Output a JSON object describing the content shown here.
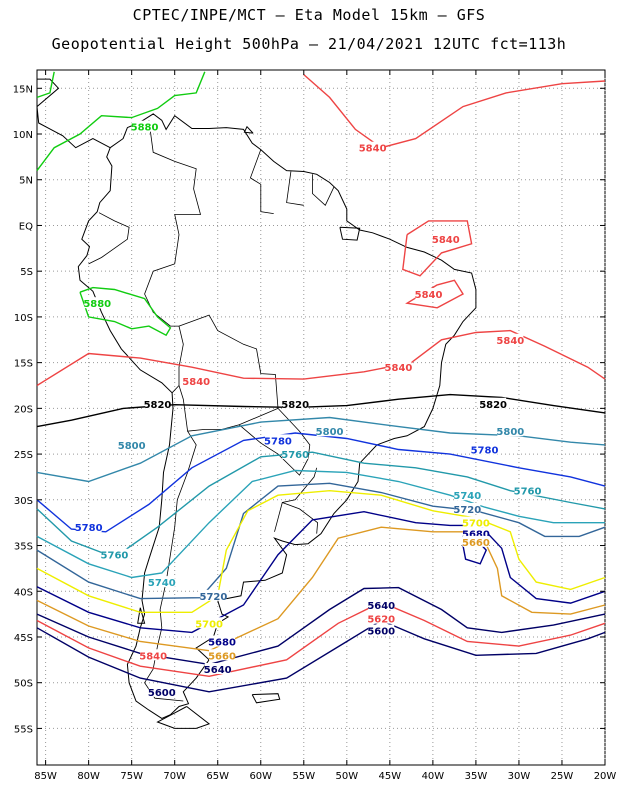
{
  "header": {
    "title_line1": "CPTEC/INPE/MCT –  Eta Model 15km – GFS",
    "title_line2": "Geopotential Height 500hPa – 21/04/2021 12UTC fct=113h"
  },
  "map": {
    "lon_range": [
      -86,
      -20
    ],
    "lat_range": [
      -59,
      17
    ],
    "lat_ticks": [
      "15N",
      "10N",
      "5N",
      "EQ",
      "5S",
      "10S",
      "15S",
      "20S",
      "25S",
      "30S",
      "35S",
      "40S",
      "45S",
      "50S",
      "55S"
    ],
    "lat_values": [
      15,
      10,
      5,
      0,
      -5,
      -10,
      -15,
      -20,
      -25,
      -30,
      -35,
      -40,
      -45,
      -50,
      -55
    ],
    "lon_ticks": [
      "85W",
      "80W",
      "75W",
      "70W",
      "65W",
      "60W",
      "55W",
      "50W",
      "45W",
      "40W",
      "35W",
      "30W",
      "25W",
      "20W"
    ],
    "lon_values": [
      -85,
      -80,
      -75,
      -70,
      -65,
      -60,
      -55,
      -50,
      -45,
      -40,
      -35,
      -30,
      -25,
      -20
    ]
  },
  "contours": [
    {
      "level": "5880",
      "color": "#11cc11",
      "labels": [
        [
          -73.5,
          10.8
        ],
        [
          -79,
          -8.5
        ]
      ]
    },
    {
      "level": "5840",
      "color": "#ee4444",
      "labels": [
        [
          -47,
          8.5
        ],
        [
          -38.5,
          -1.5
        ],
        [
          -40.5,
          -7.5
        ],
        [
          -31,
          -12.5
        ],
        [
          -44,
          -15.5
        ],
        [
          -67.5,
          -17
        ],
        [
          -72.5,
          -47
        ]
      ]
    },
    {
      "level": "5820",
      "color": "#000000",
      "labels": [
        [
          -33,
          -19.5
        ],
        [
          -72,
          -19.5
        ],
        [
          -56,
          -19.5
        ]
      ]
    },
    {
      "level": "5800",
      "color": "#3388aa",
      "labels": [
        [
          -75,
          -24
        ],
        [
          -52,
          -22.5
        ],
        [
          -31,
          -22.5
        ]
      ]
    },
    {
      "level": "5780",
      "color": "#1133dd",
      "labels": [
        [
          -80,
          -33
        ],
        [
          -58,
          -23.5
        ],
        [
          -34,
          -24.5
        ]
      ]
    },
    {
      "level": "5760",
      "color": "#2299aa",
      "labels": [
        [
          -56,
          -25
        ],
        [
          -77,
          -36
        ],
        [
          -29,
          -29
        ]
      ]
    },
    {
      "level": "5740",
      "color": "#2aa3b8",
      "labels": [
        [
          -71.5,
          -39
        ],
        [
          -36,
          -29.5
        ]
      ]
    },
    {
      "level": "5720",
      "color": "#336699",
      "labels": [
        [
          -65.5,
          -40.5
        ],
        [
          -36,
          -31
        ]
      ]
    },
    {
      "level": "5700",
      "color": "#eeee00",
      "labels": [
        [
          -66,
          -43.5
        ],
        [
          -35,
          -32.5
        ]
      ]
    },
    {
      "level": "5680",
      "color": "#000088",
      "labels": [
        [
          -64.5,
          -45.5
        ],
        [
          -35,
          -33.7
        ]
      ]
    },
    {
      "level": "5660",
      "color": "#dd9922",
      "labels": [
        [
          -64.5,
          -47
        ],
        [
          -35,
          -34.6
        ]
      ]
    },
    {
      "level": "5640",
      "color": "#000066",
      "labels": [
        [
          -65,
          -48.5
        ],
        [
          -46,
          -41.5
        ]
      ]
    },
    {
      "level": "5620",
      "color": "#ee4444",
      "labels": [
        [
          -46,
          -43
        ]
      ]
    },
    {
      "level": "5600",
      "color": "#000066",
      "labels": [
        [
          -71.5,
          -51
        ],
        [
          -46,
          -44.3
        ]
      ]
    }
  ]
}
